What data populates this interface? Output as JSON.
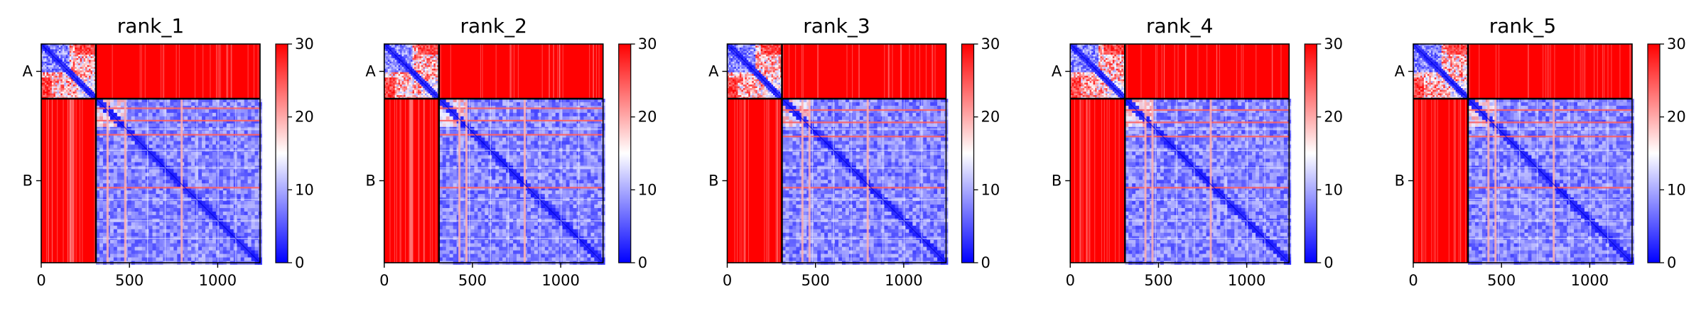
{
  "chart_data": [
    {
      "type": "heatmap",
      "title": "rank_1",
      "chains": [
        {
          "label": "A",
          "start": 0,
          "end": 310
        },
        {
          "label": "B",
          "start": 310,
          "end": 1240
        }
      ],
      "xticks": [
        0,
        500,
        1000
      ],
      "xlim": [
        0,
        1240
      ],
      "ylim": [
        0,
        1240
      ],
      "colorbar": {
        "min": 0,
        "max": 30,
        "ticks": [
          0,
          10,
          20,
          30
        ],
        "colormap": "bwr"
      },
      "ab_bands": [
        160,
        330,
        450
      ],
      "b_strong_rows": [
        360,
        430,
        510,
        810
      ],
      "b_strong_cols": [
        370,
        470,
        790
      ],
      "b_white_lines": [
        480,
        600,
        700,
        880,
        1000,
        1100
      ]
    },
    {
      "type": "heatmap",
      "title": "rank_2",
      "chains": [
        {
          "label": "A",
          "start": 0,
          "end": 310
        },
        {
          "label": "B",
          "start": 310,
          "end": 1240
        }
      ],
      "xticks": [
        0,
        500,
        1000
      ],
      "xlim": [
        0,
        1240
      ],
      "ylim": [
        0,
        1240
      ],
      "colorbar": {
        "min": 0,
        "max": 30,
        "ticks": [
          0,
          10,
          20,
          30
        ],
        "colormap": "bwr"
      },
      "ab_bands": [
        140,
        420,
        460
      ],
      "b_strong_rows": [
        360,
        430,
        510,
        810
      ],
      "b_strong_cols": [
        420,
        460,
        790
      ],
      "b_white_lines": [
        480,
        600,
        700,
        880,
        1000,
        1100
      ]
    },
    {
      "type": "heatmap",
      "title": "rank_3",
      "chains": [
        {
          "label": "A",
          "start": 0,
          "end": 310
        },
        {
          "label": "B",
          "start": 310,
          "end": 1240
        }
      ],
      "xticks": [
        0,
        500,
        1000
      ],
      "xlim": [
        0,
        1240
      ],
      "ylim": [
        0,
        1240
      ],
      "colorbar": {
        "min": 0,
        "max": 30,
        "ticks": [
          0,
          10,
          20,
          30
        ],
        "colormap": "bwr"
      },
      "ab_bands": [
        420,
        460,
        790
      ],
      "b_strong_rows": [
        370,
        440,
        520,
        810
      ],
      "b_strong_cols": [
        420,
        460,
        790
      ],
      "b_white_lines": [
        480,
        600,
        700,
        880,
        1000,
        1100
      ]
    },
    {
      "type": "heatmap",
      "title": "rank_4",
      "chains": [
        {
          "label": "A",
          "start": 0,
          "end": 310
        },
        {
          "label": "B",
          "start": 310,
          "end": 1240
        }
      ],
      "xticks": [
        0,
        500,
        1000
      ],
      "xlim": [
        0,
        1240
      ],
      "ylim": [
        0,
        1240
      ],
      "colorbar": {
        "min": 0,
        "max": 30,
        "ticks": [
          0,
          10,
          20,
          30
        ],
        "colormap": "bwr"
      },
      "ab_bands": [
        420,
        460,
        790
      ],
      "b_strong_rows": [
        370,
        440,
        520,
        810
      ],
      "b_strong_cols": [
        420,
        460,
        790
      ],
      "b_white_lines": [
        480,
        600,
        700,
        880,
        1000,
        1100
      ]
    },
    {
      "type": "heatmap",
      "title": "rank_5",
      "chains": [
        {
          "label": "A",
          "start": 0,
          "end": 310
        },
        {
          "label": "B",
          "start": 310,
          "end": 1240
        }
      ],
      "xticks": [
        0,
        500,
        1000
      ],
      "xlim": [
        0,
        1240
      ],
      "ylim": [
        0,
        1240
      ],
      "colorbar": {
        "min": 0,
        "max": 30,
        "ticks": [
          0,
          10,
          20,
          30
        ],
        "colormap": "bwr"
      },
      "ab_bands": [
        420,
        460,
        790
      ],
      "b_strong_rows": [
        370,
        440,
        520,
        810
      ],
      "b_strong_cols": [
        420,
        460,
        790
      ],
      "b_white_lines": [
        480,
        600,
        700,
        880,
        1000,
        1100
      ]
    }
  ],
  "colors": {
    "low": "#0000ff",
    "mid": "#ffffff",
    "high": "#ff0000"
  }
}
